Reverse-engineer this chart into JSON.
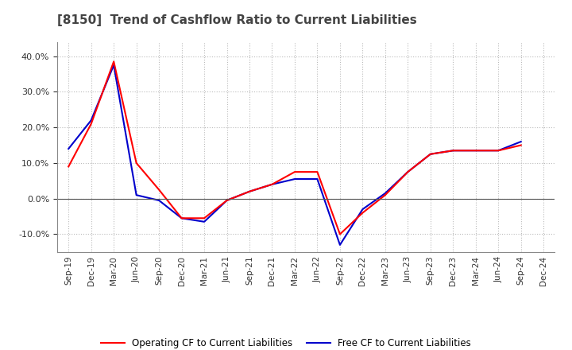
{
  "title": "[8150]  Trend of Cashflow Ratio to Current Liabilities",
  "title_fontsize": 11,
  "x_labels": [
    "Sep-19",
    "Dec-19",
    "Mar-20",
    "Jun-20",
    "Sep-20",
    "Dec-20",
    "Mar-21",
    "Jun-21",
    "Sep-21",
    "Dec-21",
    "Mar-22",
    "Jun-22",
    "Sep-22",
    "Dec-22",
    "Mar-23",
    "Jun-23",
    "Sep-23",
    "Dec-23",
    "Mar-24",
    "Jun-24",
    "Sep-24",
    "Dec-24"
  ],
  "operating_cf": [
    0.09,
    0.21,
    0.385,
    0.1,
    0.025,
    -0.055,
    -0.055,
    -0.005,
    0.02,
    0.04,
    0.075,
    0.075,
    -0.1,
    -0.04,
    0.01,
    0.075,
    0.125,
    0.135,
    0.135,
    0.135,
    0.15,
    null
  ],
  "free_cf": [
    0.14,
    0.22,
    0.375,
    0.01,
    -0.005,
    -0.055,
    -0.065,
    -0.005,
    0.02,
    0.04,
    0.055,
    0.055,
    -0.13,
    -0.03,
    0.015,
    0.075,
    0.125,
    0.135,
    0.135,
    0.135,
    0.16,
    null
  ],
  "ylim": [
    -0.15,
    0.44
  ],
  "yticks": [
    -0.1,
    0.0,
    0.1,
    0.2,
    0.3,
    0.4
  ],
  "operating_color": "#ff0000",
  "free_color": "#0000cc",
  "grid_color": "#bbbbbb",
  "background_color": "#ffffff",
  "legend_operating": "Operating CF to Current Liabilities",
  "legend_free": "Free CF to Current Liabilities"
}
